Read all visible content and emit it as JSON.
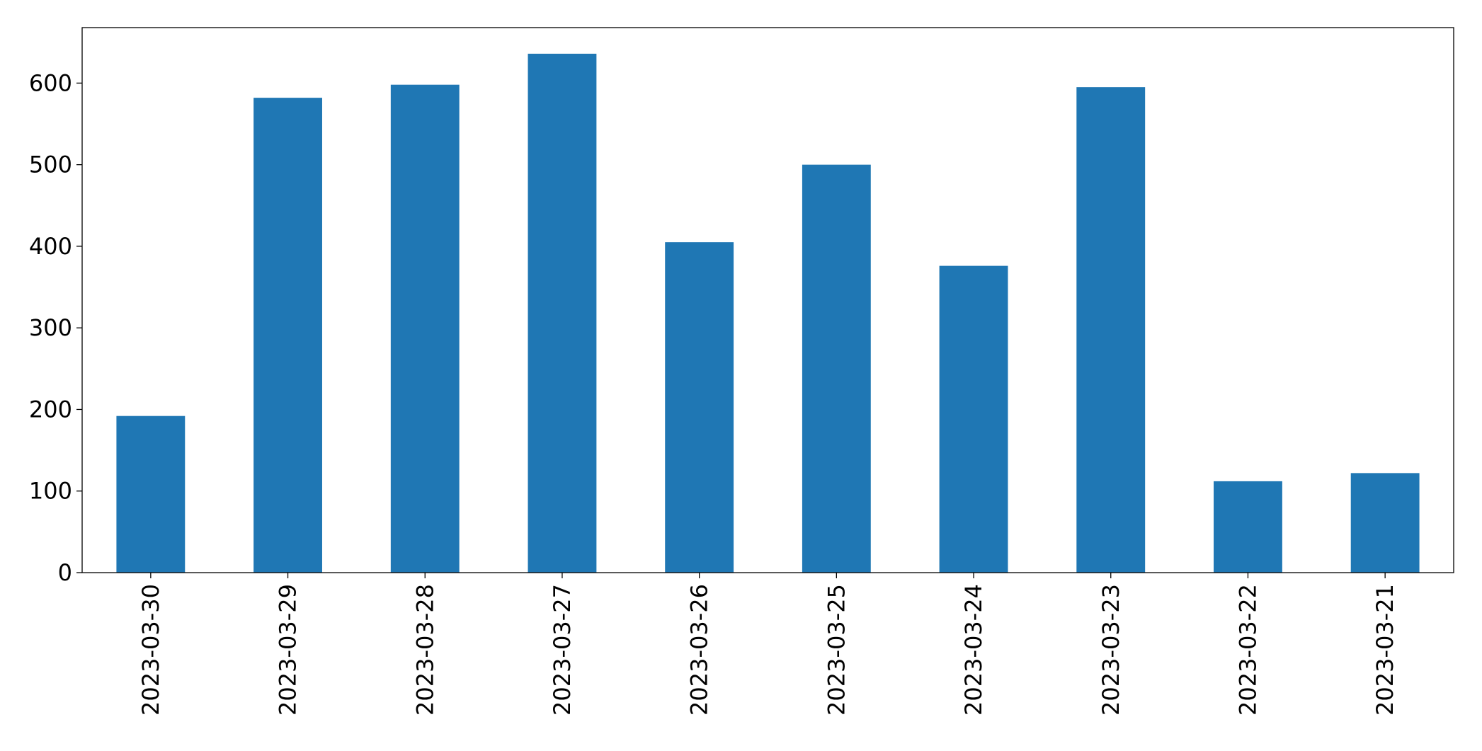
{
  "chart_data": {
    "type": "bar",
    "categories": [
      "2023-03-30",
      "2023-03-29",
      "2023-03-28",
      "2023-03-27",
      "2023-03-26",
      "2023-03-25",
      "2023-03-24",
      "2023-03-23",
      "2023-03-22",
      "2023-03-21"
    ],
    "values": [
      192,
      582,
      598,
      636,
      405,
      500,
      376,
      595,
      112,
      122
    ],
    "color": "#1f77b4",
    "ylim": [
      0,
      668
    ],
    "yticks": [
      0,
      100,
      200,
      300,
      400,
      500,
      600
    ],
    "grid": false
  }
}
